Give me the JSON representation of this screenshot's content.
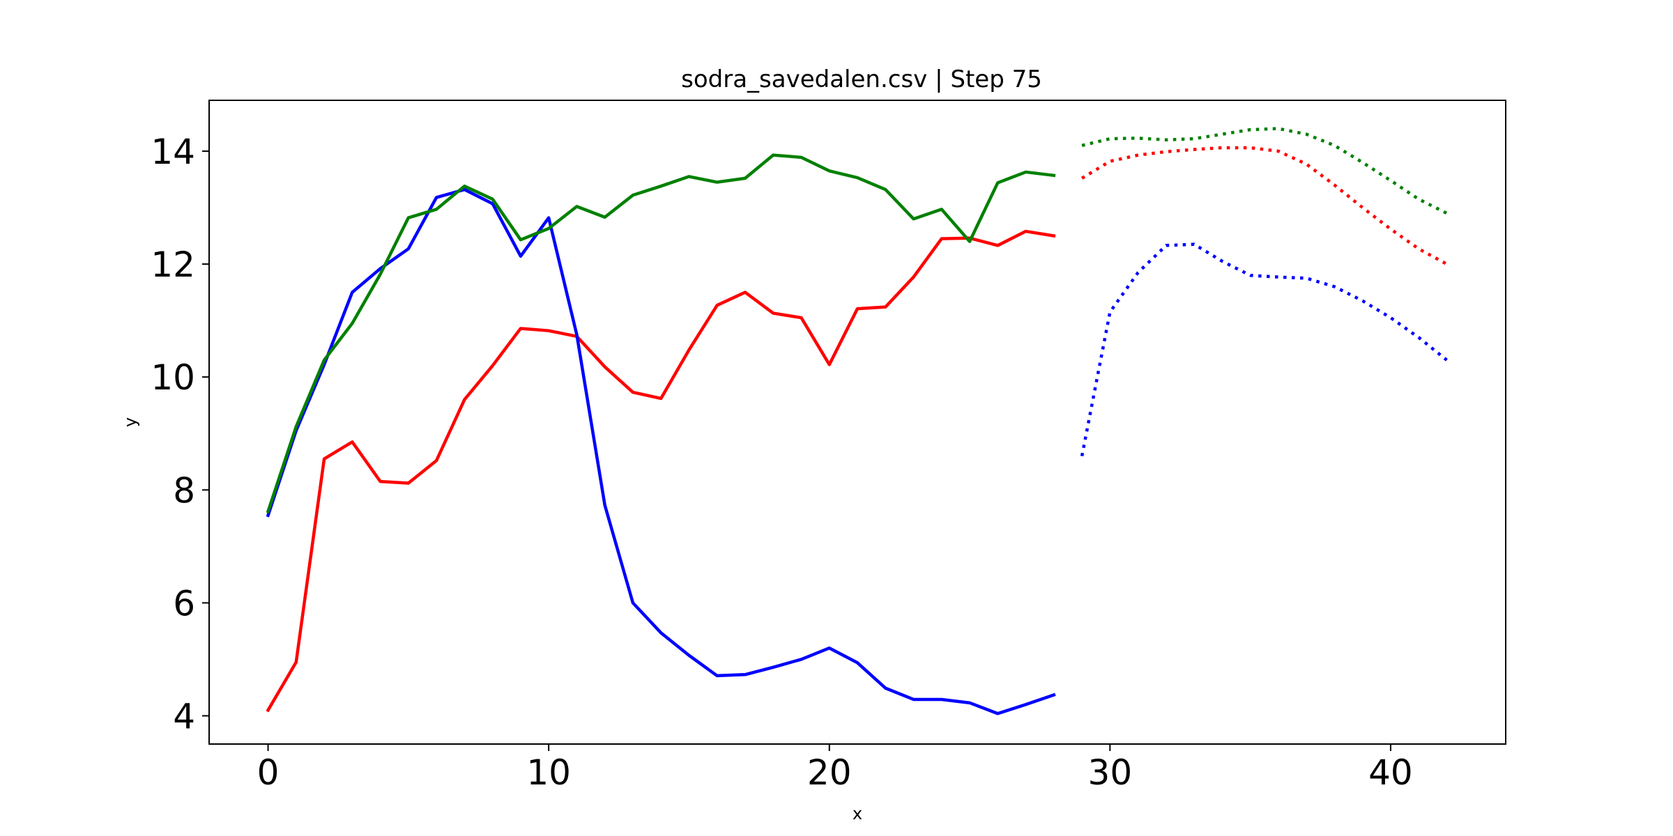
{
  "chart_data": {
    "type": "line",
    "title": "sodra_savedalen.csv | Step 75",
    "xlabel": "x",
    "ylabel": "y",
    "xlim": [
      -2.1,
      44.1
    ],
    "ylim": [
      3.5,
      14.9
    ],
    "xticks": [
      0,
      10,
      20,
      30,
      40
    ],
    "yticks": [
      4,
      6,
      8,
      10,
      12,
      14
    ],
    "grid": false,
    "legend": "none",
    "series": [
      {
        "color": "#ff0000",
        "style": "solid",
        "x": [
          0,
          1,
          2,
          3,
          4,
          5,
          6,
          7,
          8,
          9,
          10,
          11,
          12,
          13,
          14,
          15,
          16,
          17,
          18,
          19,
          20,
          21,
          22,
          23,
          24,
          25,
          26,
          27,
          28
        ],
        "values": [
          4.1,
          4.95,
          8.55,
          8.85,
          8.15,
          8.12,
          8.52,
          9.6,
          10.2,
          10.86,
          10.82,
          10.72,
          10.18,
          9.73,
          9.62,
          10.48,
          11.27,
          11.5,
          11.13,
          11.05,
          10.22,
          11.21,
          11.24,
          11.77,
          12.45,
          12.46,
          12.33,
          12.58,
          12.5
        ]
      },
      {
        "color": "#0000ff",
        "style": "solid",
        "x": [
          0,
          1,
          2,
          3,
          4,
          5,
          6,
          7,
          8,
          9,
          10,
          11,
          12,
          13,
          14,
          15,
          16,
          17,
          18,
          19,
          20,
          21,
          22,
          23,
          24,
          25,
          26,
          27,
          28
        ],
        "values": [
          7.55,
          9.05,
          10.22,
          11.5,
          11.92,
          12.27,
          13.18,
          13.32,
          13.07,
          12.14,
          12.82,
          10.75,
          7.73,
          6.0,
          5.47,
          5.07,
          4.71,
          4.73,
          4.86,
          5.0,
          5.2,
          4.94,
          4.49,
          4.29,
          4.29,
          4.23,
          4.04,
          4.2,
          4.37
        ]
      },
      {
        "color": "#008000",
        "style": "solid",
        "x": [
          0,
          1,
          2,
          3,
          4,
          5,
          6,
          7,
          8,
          9,
          10,
          11,
          12,
          13,
          14,
          15,
          16,
          17,
          18,
          19,
          20,
          21,
          22,
          23,
          24,
          25,
          26,
          27,
          28
        ],
        "values": [
          7.62,
          9.12,
          10.3,
          10.95,
          11.82,
          12.82,
          12.97,
          13.38,
          13.15,
          12.43,
          12.63,
          13.02,
          12.83,
          13.22,
          13.38,
          13.55,
          13.45,
          13.52,
          13.93,
          13.89,
          13.65,
          13.53,
          13.32,
          12.8,
          12.97,
          12.4,
          13.44,
          13.63,
          13.57
        ]
      },
      {
        "color": "#ff0000",
        "style": "dotted",
        "x": [
          29,
          30,
          31,
          32,
          33,
          34,
          35,
          36,
          37,
          38,
          39,
          40,
          41,
          42
        ],
        "values": [
          13.52,
          13.82,
          13.93,
          13.99,
          14.03,
          14.06,
          14.06,
          14.0,
          13.77,
          13.4,
          13.0,
          12.62,
          12.27,
          12.0
        ]
      },
      {
        "color": "#0000ff",
        "style": "dotted",
        "x": [
          29,
          30,
          31,
          32,
          33,
          34,
          35,
          36,
          37,
          38,
          39,
          40,
          41,
          42
        ],
        "values": [
          8.6,
          11.15,
          11.85,
          12.33,
          12.35,
          12.05,
          11.8,
          11.77,
          11.75,
          11.6,
          11.35,
          11.05,
          10.7,
          10.3
        ]
      },
      {
        "color": "#008000",
        "style": "dotted",
        "x": [
          29,
          30,
          31,
          32,
          33,
          34,
          35,
          36,
          37,
          38,
          39,
          40,
          41,
          42
        ],
        "values": [
          14.1,
          14.22,
          14.23,
          14.2,
          14.22,
          14.3,
          14.38,
          14.4,
          14.3,
          14.1,
          13.8,
          13.48,
          13.15,
          12.9
        ]
      }
    ]
  }
}
